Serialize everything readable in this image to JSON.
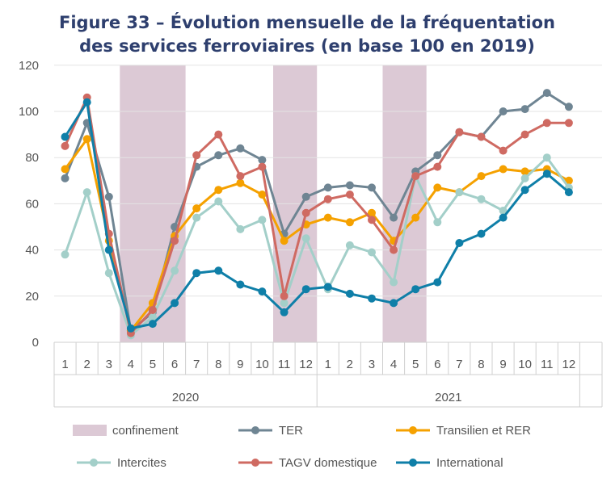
{
  "title_line1": "Figure 33 – Évolution mensuelle de la fréquentation",
  "title_line2": "des services ferroviaires (en base 100 en 2019)",
  "chart_data": {
    "type": "line",
    "title": "Figure 33 – Évolution mensuelle de la fréquentation des services ferroviaires (en base 100 en 2019)",
    "months": [
      "1",
      "2",
      "3",
      "4",
      "5",
      "6",
      "7",
      "8",
      "9",
      "10",
      "11",
      "12",
      "1",
      "2",
      "3",
      "4",
      "5",
      "6",
      "7",
      "8",
      "9",
      "10",
      "11",
      "12"
    ],
    "years": [
      "2020",
      "2021"
    ],
    "ylim": [
      0,
      120
    ],
    "yticks": [
      0,
      20,
      40,
      60,
      80,
      100,
      120
    ],
    "grid": true,
    "legend_position": "bottom",
    "shaded_label": "confinement",
    "shaded_color": "#dcc9d5",
    "shaded_ranges": [
      [
        3,
        6
      ],
      [
        10,
        12
      ],
      [
        15,
        17
      ]
    ],
    "series": [
      {
        "name": "TER",
        "color": "#6f8593",
        "values": [
          71,
          95,
          63,
          5,
          13,
          50,
          76,
          81,
          84,
          79,
          47,
          63,
          67,
          68,
          67,
          54,
          74,
          81,
          91,
          89,
          100,
          101,
          108,
          102
        ]
      },
      {
        "name": "Transilien et RER",
        "color": "#f5a100",
        "values": [
          75,
          88,
          44,
          5,
          17,
          46,
          58,
          66,
          69,
          64,
          44,
          51,
          54,
          52,
          56,
          44,
          54,
          67,
          65,
          72,
          75,
          74,
          75,
          70
        ]
      },
      {
        "name": "Intercites",
        "color": "#a3cfc9",
        "values": [
          38,
          65,
          30,
          3,
          11,
          31,
          54,
          61,
          49,
          53,
          17,
          45,
          23,
          42,
          39,
          26,
          72,
          52,
          65,
          62,
          57,
          71,
          80,
          67
        ]
      },
      {
        "name": "TAGV domestique",
        "color": "#cf6a62",
        "values": [
          85,
          106,
          47,
          4,
          14,
          44,
          81,
          90,
          72,
          76,
          20,
          56,
          62,
          64,
          53,
          40,
          72,
          76,
          91,
          89,
          83,
          90,
          95,
          95
        ]
      },
      {
        "name": "International",
        "color": "#0f7fa8",
        "values": [
          89,
          104,
          40,
          6,
          8,
          17,
          30,
          31,
          25,
          22,
          13,
          23,
          24,
          21,
          19,
          17,
          23,
          26,
          43,
          47,
          54,
          66,
          73,
          65
        ]
      }
    ]
  }
}
